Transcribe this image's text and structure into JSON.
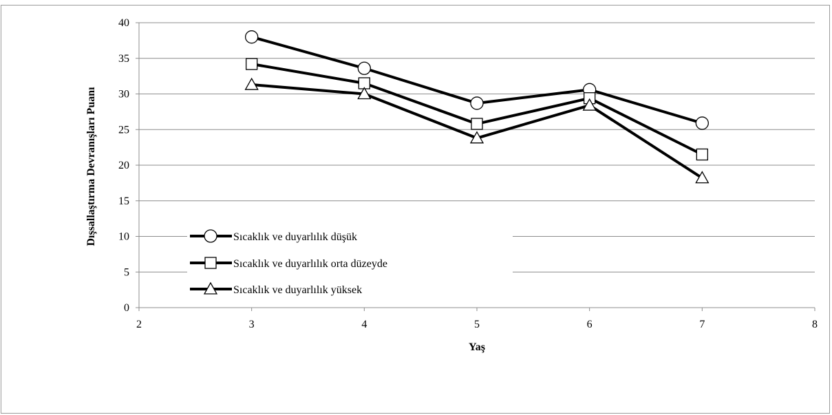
{
  "chart_data": {
    "type": "line",
    "title": "",
    "xlabel": "Yaş",
    "ylabel": "Dışsallaştırma Devranışları Puanı",
    "xlim": [
      2,
      8
    ],
    "ylim": [
      0,
      40
    ],
    "x_ticks": [
      2,
      3,
      4,
      5,
      6,
      7,
      8
    ],
    "y_ticks": [
      0,
      5,
      10,
      15,
      20,
      25,
      30,
      35,
      40
    ],
    "grid": "horizontal",
    "legend_position": "bottom-left",
    "x": [
      3,
      4,
      5,
      6,
      7
    ],
    "series": [
      {
        "name": "Sıcaklık ve duyarlılık düşük",
        "marker": "circle",
        "color": "#000000",
        "values": [
          38.0,
          33.6,
          28.7,
          30.6,
          25.9
        ]
      },
      {
        "name": "Sıcaklık ve duyarlılık orta düzeyde",
        "marker": "square",
        "color": "#000000",
        "values": [
          34.2,
          31.5,
          25.8,
          29.4,
          21.5
        ]
      },
      {
        "name": "Sıcaklık ve duyarlılık yüksek",
        "marker": "triangle",
        "color": "#000000",
        "values": [
          31.3,
          30.0,
          23.8,
          28.4,
          18.2
        ]
      }
    ]
  }
}
